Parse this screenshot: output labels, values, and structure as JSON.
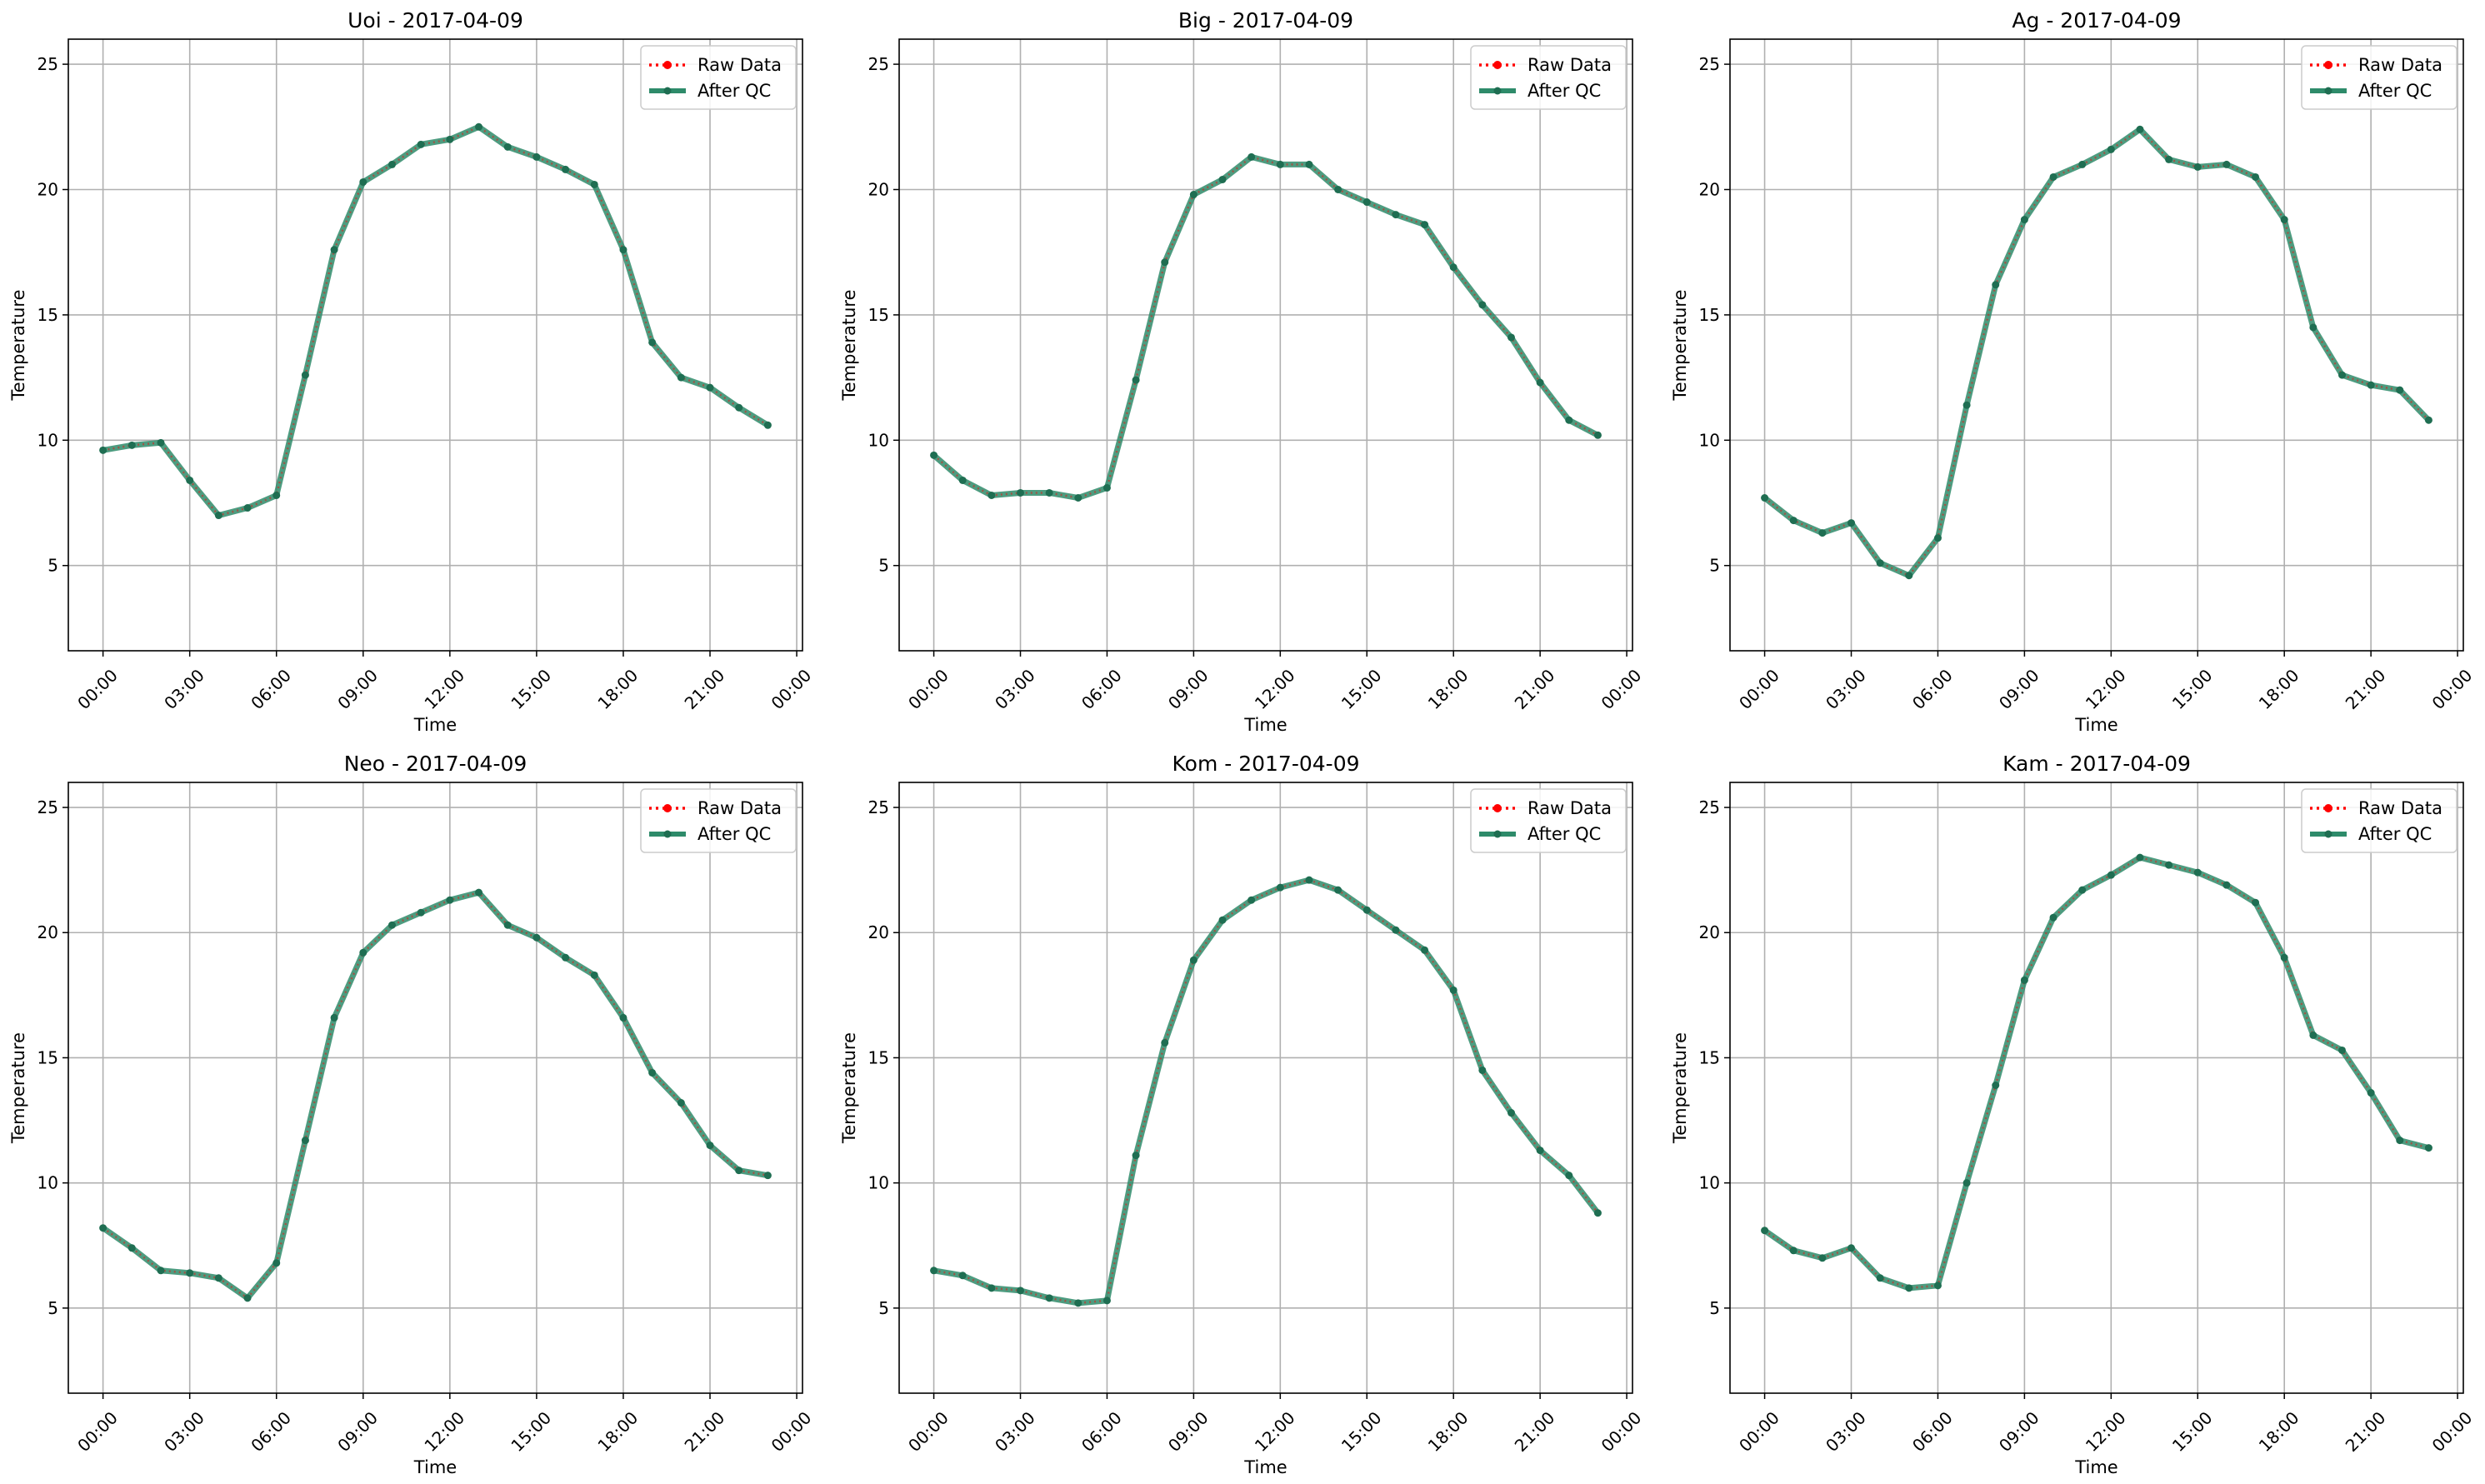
{
  "legend": {
    "raw_label": "Raw Data",
    "qc_label": "After QC",
    "raw_color": "#ff0000",
    "qc_color": "#2e8b6a"
  },
  "chart_data": [
    {
      "type": "line",
      "title": "Uoi - 2017-04-09",
      "xlabel": "Time",
      "ylabel": "Temperature",
      "x_tick_labels": [
        "00:00",
        "03:00",
        "06:00",
        "09:00",
        "12:00",
        "15:00",
        "18:00",
        "21:00",
        "00:00"
      ],
      "x_ticks_hours": [
        0,
        3,
        6,
        9,
        12,
        15,
        18,
        21,
        24
      ],
      "y_ticks": [
        5,
        10,
        15,
        20,
        25
      ],
      "xlim_hours": [
        -1.2,
        24.2
      ],
      "ylim": [
        1.6,
        26.0
      ],
      "grid": true,
      "legend_position": "upper right",
      "x_hours": [
        0,
        1,
        2,
        3,
        4,
        5,
        6,
        7,
        8,
        9,
        10,
        11,
        12,
        13,
        14,
        15,
        16,
        17,
        18,
        19,
        20,
        21,
        22,
        23
      ],
      "series": [
        {
          "name": "Raw Data",
          "values": [
            9.6,
            9.8,
            9.9,
            8.4,
            7.0,
            7.3,
            7.8,
            12.6,
            17.6,
            20.3,
            21.0,
            21.8,
            22.0,
            22.5,
            21.7,
            21.3,
            20.8,
            20.2,
            17.6,
            13.9,
            12.5,
            12.1,
            11.3,
            10.6
          ]
        },
        {
          "name": "After QC",
          "values": [
            9.6,
            9.8,
            9.9,
            8.4,
            7.0,
            7.3,
            7.8,
            12.6,
            17.6,
            20.3,
            21.0,
            21.8,
            22.0,
            22.5,
            21.7,
            21.3,
            20.8,
            20.2,
            17.6,
            13.9,
            12.5,
            12.1,
            11.3,
            10.6
          ]
        }
      ]
    },
    {
      "type": "line",
      "title": "Big - 2017-04-09",
      "xlabel": "Time",
      "ylabel": "Temperature",
      "x_tick_labels": [
        "00:00",
        "03:00",
        "06:00",
        "09:00",
        "12:00",
        "15:00",
        "18:00",
        "21:00",
        "00:00"
      ],
      "x_ticks_hours": [
        0,
        3,
        6,
        9,
        12,
        15,
        18,
        21,
        24
      ],
      "y_ticks": [
        5,
        10,
        15,
        20,
        25
      ],
      "xlim_hours": [
        -1.2,
        24.2
      ],
      "ylim": [
        1.6,
        26.0
      ],
      "grid": true,
      "legend_position": "upper right",
      "x_hours": [
        0,
        1,
        2,
        3,
        4,
        5,
        6,
        7,
        8,
        9,
        10,
        11,
        12,
        13,
        14,
        15,
        16,
        17,
        18,
        19,
        20,
        21,
        22,
        23
      ],
      "series": [
        {
          "name": "Raw Data",
          "values": [
            9.4,
            8.4,
            7.8,
            7.9,
            7.9,
            7.7,
            8.1,
            12.4,
            17.1,
            19.8,
            20.4,
            21.3,
            21.0,
            21.0,
            20.0,
            19.5,
            19.0,
            18.6,
            16.9,
            15.4,
            14.1,
            12.3,
            10.8,
            10.2
          ]
        },
        {
          "name": "After QC",
          "values": [
            9.4,
            8.4,
            7.8,
            7.9,
            7.9,
            7.7,
            8.1,
            12.4,
            17.1,
            19.8,
            20.4,
            21.3,
            21.0,
            21.0,
            20.0,
            19.5,
            19.0,
            18.6,
            16.9,
            15.4,
            14.1,
            12.3,
            10.8,
            10.2
          ]
        }
      ]
    },
    {
      "type": "line",
      "title": "Ag - 2017-04-09",
      "xlabel": "Time",
      "ylabel": "Temperature",
      "x_tick_labels": [
        "00:00",
        "03:00",
        "06:00",
        "09:00",
        "12:00",
        "15:00",
        "18:00",
        "21:00",
        "00:00"
      ],
      "x_ticks_hours": [
        0,
        3,
        6,
        9,
        12,
        15,
        18,
        21,
        24
      ],
      "y_ticks": [
        5,
        10,
        15,
        20,
        25
      ],
      "xlim_hours": [
        -1.2,
        24.2
      ],
      "ylim": [
        1.6,
        26.0
      ],
      "grid": true,
      "legend_position": "upper right",
      "x_hours": [
        0,
        1,
        2,
        3,
        4,
        5,
        6,
        7,
        8,
        9,
        10,
        11,
        12,
        13,
        14,
        15,
        16,
        17,
        18,
        19,
        20,
        21,
        22,
        23
      ],
      "series": [
        {
          "name": "Raw Data",
          "values": [
            7.7,
            6.8,
            6.3,
            6.7,
            5.1,
            4.6,
            6.1,
            11.4,
            16.2,
            18.8,
            20.5,
            21.0,
            21.6,
            22.4,
            21.2,
            20.9,
            21.0,
            20.5,
            18.8,
            14.5,
            12.6,
            12.2,
            12.0,
            10.8
          ]
        },
        {
          "name": "After QC",
          "values": [
            7.7,
            6.8,
            6.3,
            6.7,
            5.1,
            4.6,
            6.1,
            11.4,
            16.2,
            18.8,
            20.5,
            21.0,
            21.6,
            22.4,
            21.2,
            20.9,
            21.0,
            20.5,
            18.8,
            14.5,
            12.6,
            12.2,
            12.0,
            10.8
          ]
        }
      ]
    },
    {
      "type": "line",
      "title": "Neo - 2017-04-09",
      "xlabel": "Time",
      "ylabel": "Temperature",
      "x_tick_labels": [
        "00:00",
        "03:00",
        "06:00",
        "09:00",
        "12:00",
        "15:00",
        "18:00",
        "21:00",
        "00:00"
      ],
      "x_ticks_hours": [
        0,
        3,
        6,
        9,
        12,
        15,
        18,
        21,
        24
      ],
      "y_ticks": [
        5,
        10,
        15,
        20,
        25
      ],
      "xlim_hours": [
        -1.2,
        24.2
      ],
      "ylim": [
        1.6,
        26.0
      ],
      "grid": true,
      "legend_position": "upper right",
      "x_hours": [
        0,
        1,
        2,
        3,
        4,
        5,
        6,
        7,
        8,
        9,
        10,
        11,
        12,
        13,
        14,
        15,
        16,
        17,
        18,
        19,
        20,
        21,
        22,
        23
      ],
      "series": [
        {
          "name": "Raw Data",
          "values": [
            8.2,
            7.4,
            6.5,
            6.4,
            6.2,
            5.4,
            6.8,
            11.7,
            16.6,
            19.2,
            20.3,
            20.8,
            21.3,
            21.6,
            20.3,
            19.8,
            19.0,
            18.3,
            16.6,
            14.4,
            13.2,
            11.5,
            10.5,
            10.3
          ]
        },
        {
          "name": "After QC",
          "values": [
            8.2,
            7.4,
            6.5,
            6.4,
            6.2,
            5.4,
            6.8,
            11.7,
            16.6,
            19.2,
            20.3,
            20.8,
            21.3,
            21.6,
            20.3,
            19.8,
            19.0,
            18.3,
            16.6,
            14.4,
            13.2,
            11.5,
            10.5,
            10.3
          ]
        }
      ]
    },
    {
      "type": "line",
      "title": "Kom - 2017-04-09",
      "xlabel": "Time",
      "ylabel": "Temperature",
      "x_tick_labels": [
        "00:00",
        "03:00",
        "06:00",
        "09:00",
        "12:00",
        "15:00",
        "18:00",
        "21:00",
        "00:00"
      ],
      "x_ticks_hours": [
        0,
        3,
        6,
        9,
        12,
        15,
        18,
        21,
        24
      ],
      "y_ticks": [
        5,
        10,
        15,
        20,
        25
      ],
      "xlim_hours": [
        -1.2,
        24.2
      ],
      "ylim": [
        1.6,
        26.0
      ],
      "grid": true,
      "legend_position": "upper right",
      "x_hours": [
        0,
        1,
        2,
        3,
        4,
        5,
        6,
        7,
        8,
        9,
        10,
        11,
        12,
        13,
        14,
        15,
        16,
        17,
        18,
        19,
        20,
        21,
        22,
        23
      ],
      "series": [
        {
          "name": "Raw Data",
          "values": [
            6.5,
            6.3,
            5.8,
            5.7,
            5.4,
            5.2,
            5.3,
            11.1,
            15.6,
            18.9,
            20.5,
            21.3,
            21.8,
            22.1,
            21.7,
            20.9,
            20.1,
            19.3,
            17.7,
            14.5,
            12.8,
            11.3,
            10.3,
            8.8
          ]
        },
        {
          "name": "After QC",
          "values": [
            6.5,
            6.3,
            5.8,
            5.7,
            5.4,
            5.2,
            5.3,
            11.1,
            15.6,
            18.9,
            20.5,
            21.3,
            21.8,
            22.1,
            21.7,
            20.9,
            20.1,
            19.3,
            17.7,
            14.5,
            12.8,
            11.3,
            10.3,
            8.8
          ]
        }
      ]
    },
    {
      "type": "line",
      "title": "Kam - 2017-04-09",
      "xlabel": "Time",
      "ylabel": "Temperature",
      "x_tick_labels": [
        "00:00",
        "03:00",
        "06:00",
        "09:00",
        "12:00",
        "15:00",
        "18:00",
        "21:00",
        "00:00"
      ],
      "x_ticks_hours": [
        0,
        3,
        6,
        9,
        12,
        15,
        18,
        21,
        24
      ],
      "y_ticks": [
        5,
        10,
        15,
        20,
        25
      ],
      "xlim_hours": [
        -1.2,
        24.2
      ],
      "ylim": [
        1.6,
        26.0
      ],
      "grid": true,
      "legend_position": "upper right",
      "x_hours": [
        0,
        1,
        2,
        3,
        4,
        5,
        6,
        7,
        8,
        9,
        10,
        11,
        12,
        13,
        14,
        15,
        16,
        17,
        18,
        19,
        20,
        21,
        22,
        23
      ],
      "series": [
        {
          "name": "Raw Data",
          "values": [
            8.1,
            7.3,
            7.0,
            7.4,
            6.2,
            5.8,
            5.9,
            10.0,
            13.9,
            18.1,
            20.6,
            21.7,
            22.3,
            23.0,
            22.7,
            22.4,
            21.9,
            21.2,
            19.0,
            15.9,
            15.3,
            13.6,
            11.7,
            11.4
          ]
        },
        {
          "name": "After QC",
          "values": [
            8.1,
            7.3,
            7.0,
            7.4,
            6.2,
            5.8,
            5.9,
            10.0,
            13.9,
            18.1,
            20.6,
            21.7,
            22.3,
            23.0,
            22.7,
            22.4,
            21.9,
            21.2,
            19.0,
            15.9,
            15.3,
            13.6,
            11.7,
            11.4
          ]
        }
      ]
    }
  ]
}
